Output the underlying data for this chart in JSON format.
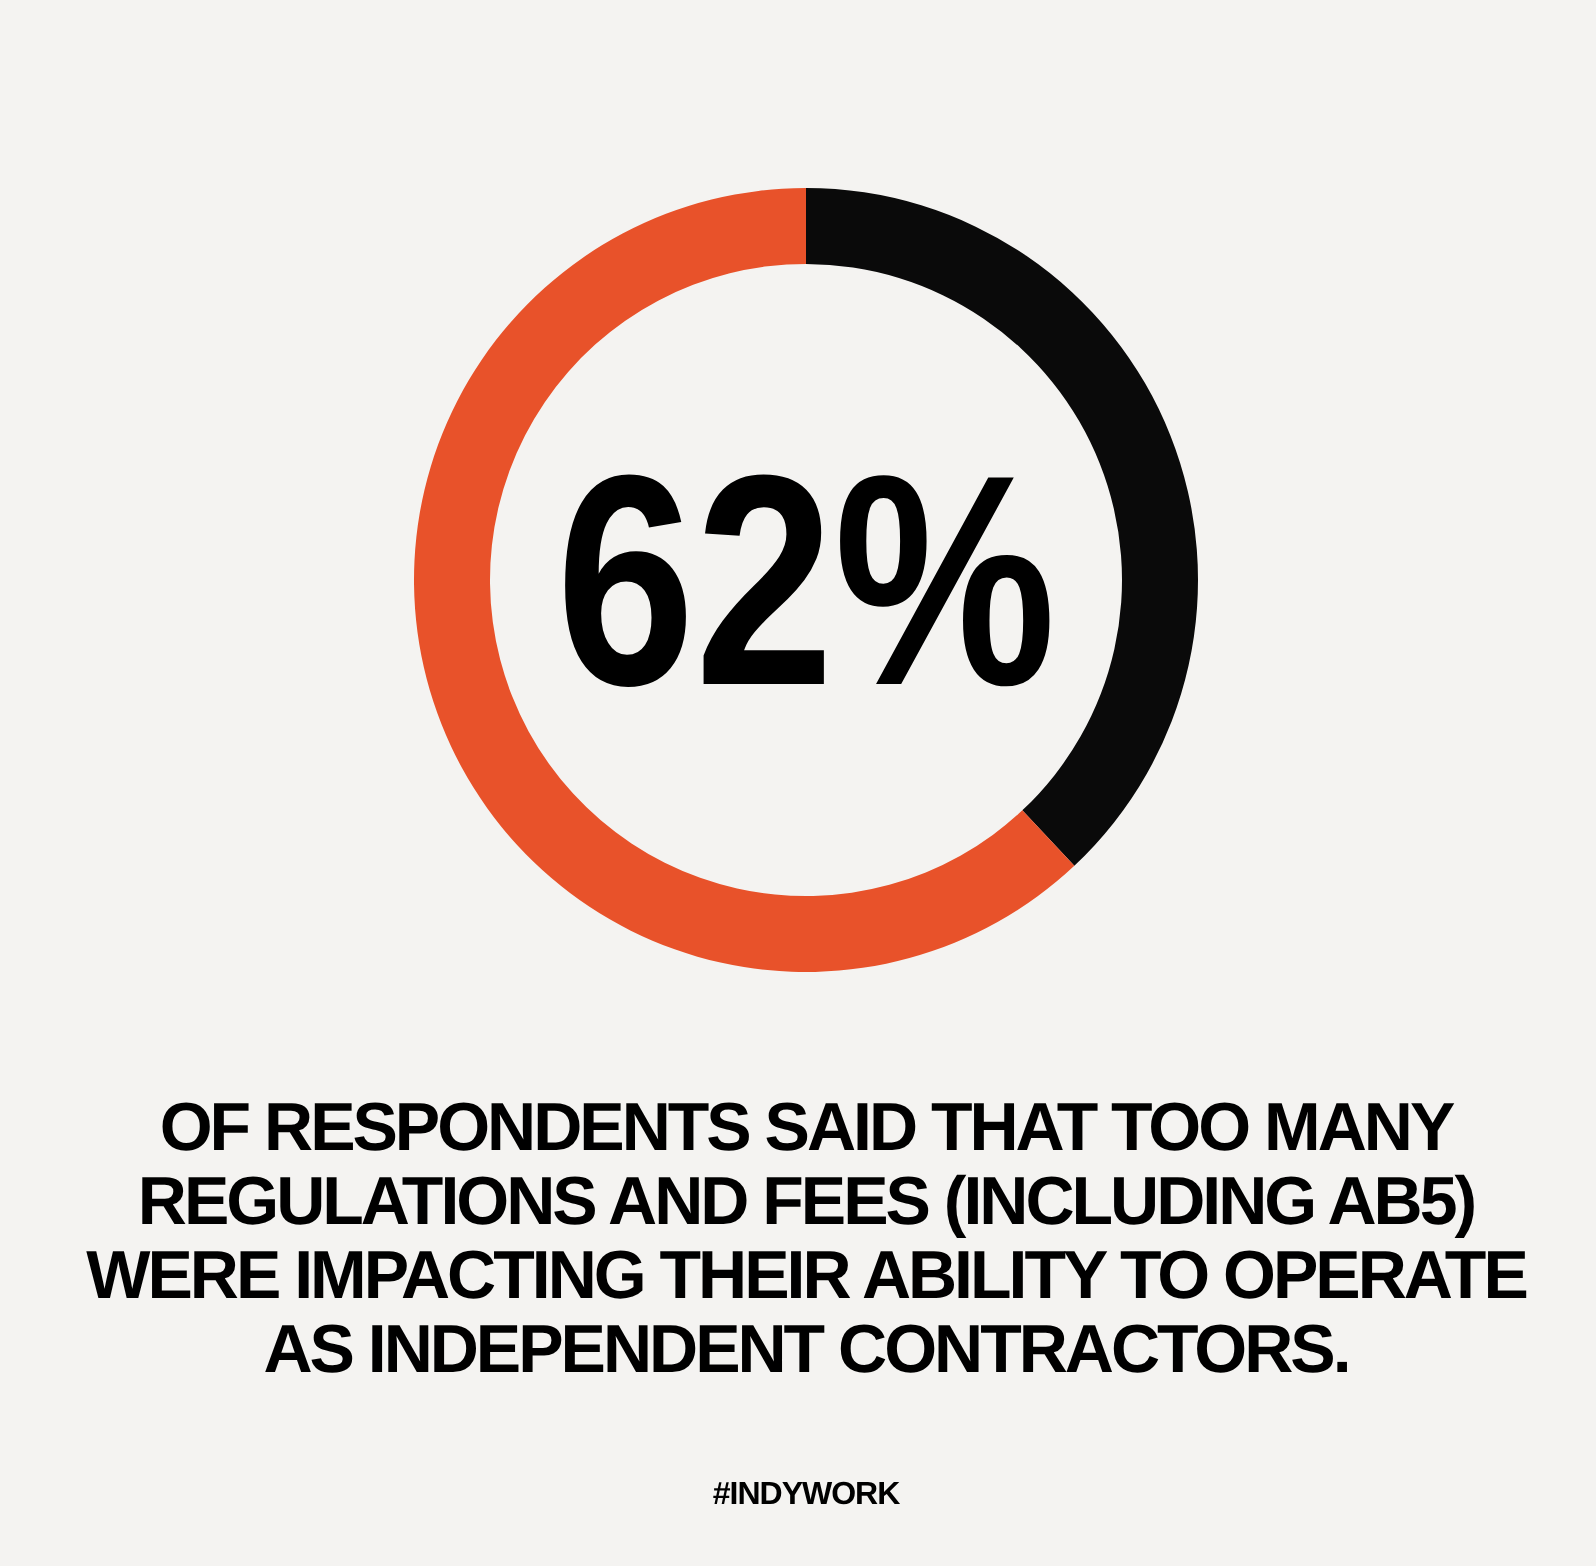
{
  "chart_data": {
    "type": "donut",
    "categories": [
      null,
      null
    ],
    "values": [
      38,
      62
    ],
    "colors": [
      "#0a0a0a",
      "#e8522a"
    ],
    "title": "62%",
    "annotations": [
      "OF RESPONDENTS SAID THAT TOO MANY REGULATIONS AND FEES (INCLUDING AB5) WERE IMPACTING THEIR ABILITY TO OPERATE AS INDEPENDENT CONTRACTORS.",
      "#INDYWORK"
    ]
  }
}
